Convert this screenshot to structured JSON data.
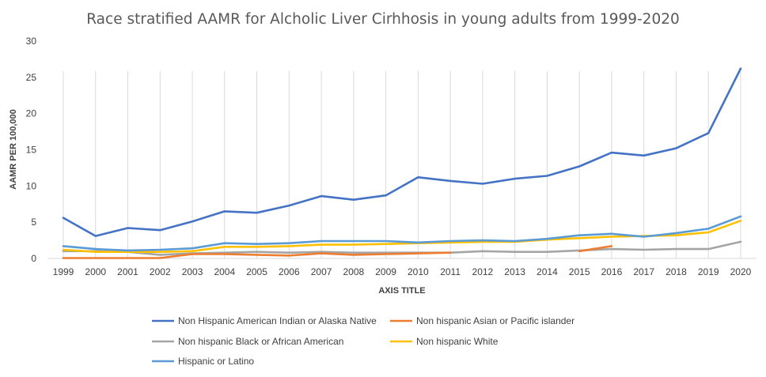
{
  "chart_data": {
    "type": "line",
    "title": "Race stratified AAMR for Alcholic Liver Cirhhosis in young adults from 1999-2020",
    "xlabel": "AXIS TITLE",
    "ylabel": "AAMR PER 100,000",
    "ylim": [
      0,
      30
    ],
    "yticks": [
      0,
      5,
      10,
      15,
      20,
      25,
      30
    ],
    "grid": "vertical lines at each category",
    "legend_position": "bottom",
    "categories": [
      "1999",
      "2000",
      "2001",
      "2002",
      "2003",
      "2004",
      "2005",
      "2006",
      "2007",
      "2008",
      "2009",
      "2010",
      "2011",
      "2012",
      "2013",
      "2014",
      "2015",
      "2016",
      "2017",
      "2018",
      "2019",
      "2020"
    ],
    "series": [
      {
        "name": "Non Hispanic American Indian or Alaska Native",
        "color": "#4472c4",
        "values": [
          5.6,
          3.1,
          4.2,
          3.9,
          5.1,
          6.5,
          6.3,
          7.3,
          8.6,
          8.1,
          8.7,
          11.2,
          10.7,
          10.3,
          11.0,
          11.4,
          12.7,
          14.6,
          14.2,
          15.2,
          17.3,
          26.2
        ]
      },
      {
        "name": "Non hispanic Asian or Pacific islander",
        "color": "#ed7d31",
        "values": [
          0.05,
          0.05,
          0.05,
          0.05,
          0.6,
          0.6,
          0.5,
          0.4,
          0.7,
          0.5,
          0.6,
          0.7,
          0.8,
          null,
          null,
          null,
          1.0,
          1.7,
          null,
          null,
          null,
          null
        ]
      },
      {
        "name": "Non hispanic Black or African American",
        "color": "#a5a5a5",
        "values": [
          1.0,
          1.0,
          0.9,
          0.5,
          0.7,
          0.8,
          0.9,
          0.8,
          0.9,
          0.8,
          0.8,
          0.8,
          0.8,
          1.0,
          0.9,
          0.9,
          1.1,
          1.3,
          1.2,
          1.3,
          1.3,
          2.3
        ]
      },
      {
        "name": "Non hispanic White",
        "color": "#ffc000",
        "values": [
          1.2,
          0.9,
          0.9,
          0.9,
          1.0,
          1.6,
          1.6,
          1.7,
          1.9,
          1.9,
          2.0,
          2.1,
          2.2,
          2.3,
          2.3,
          2.6,
          2.8,
          3.0,
          3.1,
          3.2,
          3.6,
          5.2
        ]
      },
      {
        "name": "Hispanic or Latino",
        "color": "#5b9bd5",
        "values": [
          1.7,
          1.3,
          1.1,
          1.2,
          1.4,
          2.1,
          2.0,
          2.1,
          2.4,
          2.4,
          2.4,
          2.2,
          2.4,
          2.5,
          2.4,
          2.7,
          3.2,
          3.4,
          3.0,
          3.5,
          4.1,
          5.8
        ]
      }
    ]
  }
}
